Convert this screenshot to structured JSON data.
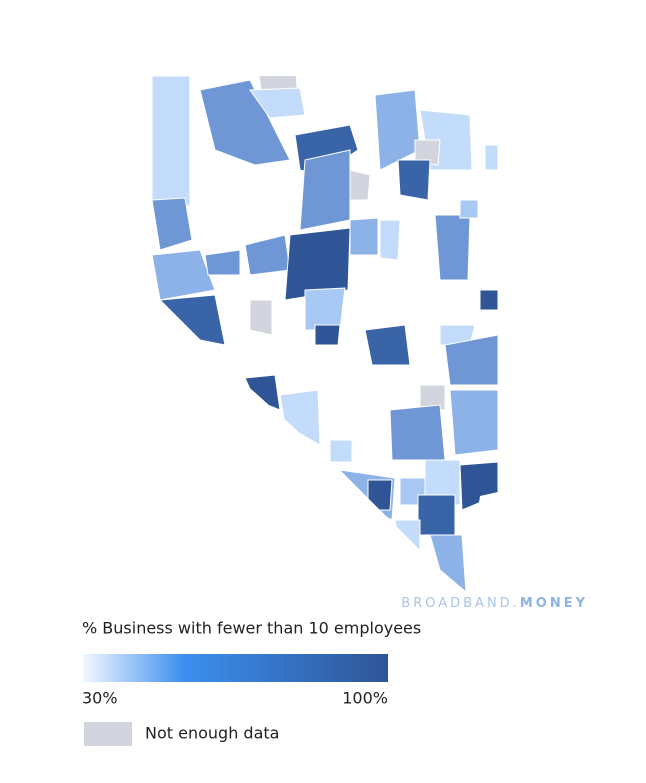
{
  "watermark": {
    "brand": "BROADBAND.",
    "suffix": "MONEY"
  },
  "legend": {
    "title": "% Business with fewer than 10 employees",
    "min_label": "30%",
    "max_label": "100%",
    "no_data_label": "Not enough data"
  }
}
